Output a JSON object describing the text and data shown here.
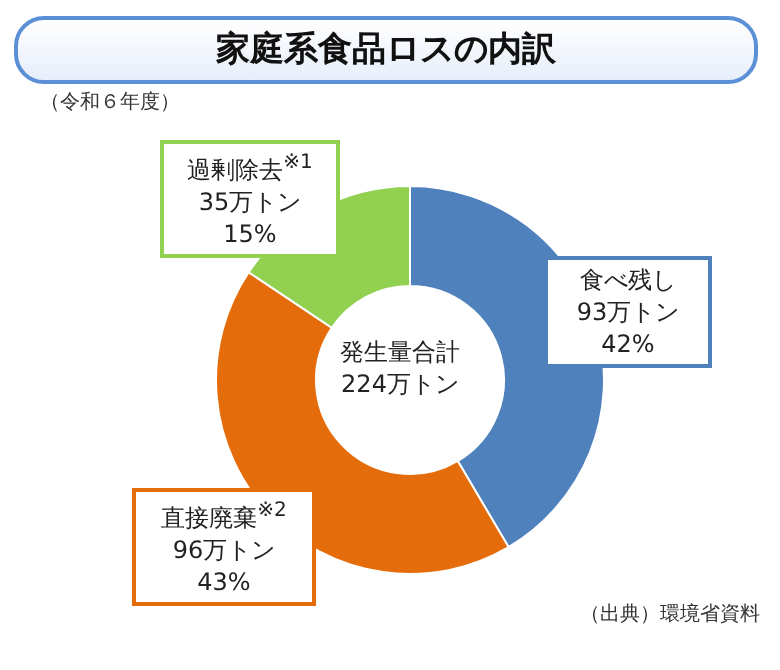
{
  "chart_data": {
    "type": "donut",
    "title": "家庭系食品ロスの内訳",
    "subtitle": "（令和６年度）",
    "categories": [
      "食べ残し",
      "直接廃棄$^{※2}$",
      "過剰除去$^{※1}$"
    ],
    "values": [
      93,
      96,
      35
    ],
    "colors": [
      "#4f81bd",
      "#e46c0a",
      "#92d050"
    ],
    "value_labels": [
      "93万トン\n42%",
      "96万トン\n43%",
      "35万トン\n15%"
    ],
    "annotations": [
      "発生量合計\n224万トン",
      "（出典）環境省資料"
    ]
  }
}
